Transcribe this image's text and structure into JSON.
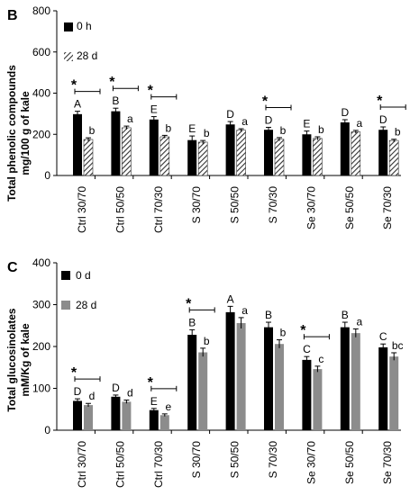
{
  "chart_data": [
    {
      "type": "bar",
      "panel_label": "B",
      "ylabel_line1": "Total phenolic compounds",
      "ylabel_line2": "mg/100 g of kale",
      "ylim": [
        0,
        800
      ],
      "yticks": [
        "0",
        "200",
        "400",
        "600",
        "800"
      ],
      "categories": [
        "Ctrl 30/70",
        "Ctrl 50/50",
        "Ctrl 70/30",
        "S 30/70",
        "S 50/50",
        "S 70/30",
        "Se 30/70",
        "Se 50/50",
        "Se 70/30"
      ],
      "series": [
        {
          "name": "0 h",
          "color": "#000000",
          "pattern": "solid",
          "values": [
            298,
            312,
            272,
            172,
            248,
            222,
            200,
            258,
            222
          ],
          "errors": [
            14,
            15,
            14,
            20,
            14,
            12,
            16,
            13,
            14
          ]
        },
        {
          "name": "28 d",
          "color": "#555555",
          "pattern": "diagonal-hatch",
          "values": [
            175,
            232,
            188,
            162,
            220,
            176,
            180,
            212,
            170
          ],
          "errors": [
            8,
            8,
            7,
            8,
            7,
            8,
            8,
            7,
            6
          ]
        }
      ],
      "letters": {
        "series1": [
          "A",
          "B",
          "E",
          "E",
          "D",
          "D",
          "E",
          "D",
          "D"
        ],
        "series2": [
          "b",
          "a",
          "b",
          "b",
          "a",
          "b",
          "b",
          "a",
          "b"
        ]
      },
      "significance": [
        "*",
        "*",
        "*",
        "",
        "",
        "*",
        "",
        "",
        "*"
      ],
      "legend_position": "top-left"
    },
    {
      "type": "bar",
      "panel_label": "C",
      "ylabel_line1": "Total glucosinolates",
      "ylabel_line2": "mM/Kg of kale",
      "ylim": [
        0,
        400
      ],
      "yticks": [
        "0",
        "100",
        "200",
        "300",
        "400"
      ],
      "categories": [
        "Ctrl 30/70",
        "Ctrl 50/50",
        "Ctrl 70/30",
        "S 30/70",
        "S 50/50",
        "S 70/30",
        "Se 30/70",
        "Se 50/50",
        "Se 70/30"
      ],
      "series": [
        {
          "name": "0 d",
          "color": "#000000",
          "pattern": "solid",
          "values": [
            70,
            80,
            48,
            228,
            282,
            246,
            168,
            246,
            198
          ],
          "errors": [
            5,
            4,
            4,
            12,
            14,
            12,
            8,
            12,
            8
          ]
        },
        {
          "name": "28 d",
          "color": "#8c8c8c",
          "pattern": "solid",
          "values": [
            60,
            68,
            36,
            186,
            256,
            206,
            146,
            232,
            176
          ],
          "errors": [
            4,
            4,
            3,
            10,
            13,
            10,
            7,
            10,
            9
          ]
        }
      ],
      "letters": {
        "series1": [
          "D",
          "D",
          "E",
          "B",
          "A",
          "B",
          "C",
          "B",
          "C"
        ],
        "series2": [
          "d",
          "d",
          "e",
          "b",
          "a",
          "b",
          "c",
          "a",
          "bc"
        ]
      },
      "significance": [
        "*",
        "",
        "*",
        "*",
        "",
        "",
        "*",
        "",
        ""
      ],
      "legend_position": "top-left"
    }
  ]
}
